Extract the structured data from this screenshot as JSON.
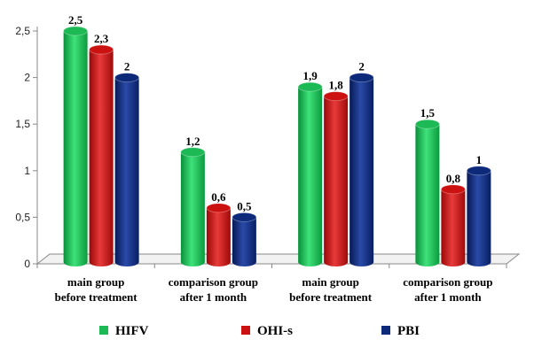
{
  "chart_data": {
    "type": "bar",
    "categories": [
      [
        "main group",
        "before treatment"
      ],
      [
        "comparison group",
        "after 1 month"
      ],
      [
        "main group",
        "before treatment"
      ],
      [
        "comparison group",
        "after 1 month"
      ]
    ],
    "series": [
      {
        "name": "HIFV",
        "color": "#1db954",
        "values": [
          2.5,
          1.2,
          1.9,
          1.5
        ],
        "labels": [
          "2,5",
          "1,2",
          "1,9",
          "1,5"
        ]
      },
      {
        "name": "OHI-s",
        "color": "#cc1111",
        "values": [
          2.3,
          0.6,
          1.8,
          0.8
        ],
        "labels": [
          "2,3",
          "0,6",
          "1,8",
          "0,8"
        ]
      },
      {
        "name": "PBI",
        "color": "#0d2a7a",
        "values": [
          2.0,
          0.5,
          2.0,
          1.0
        ],
        "labels": [
          "2",
          "0,5",
          "2",
          "1"
        ]
      }
    ],
    "ylim": [
      0,
      2.5
    ],
    "yticks": [
      0,
      0.5,
      1,
      1.5,
      2,
      2.5
    ],
    "ytick_labels": [
      "0",
      "0,5",
      "1",
      "1,5",
      "2",
      "2,5"
    ],
    "grid": false,
    "legend_position": "bottom",
    "title": "",
    "xlabel": "",
    "ylabel": ""
  }
}
